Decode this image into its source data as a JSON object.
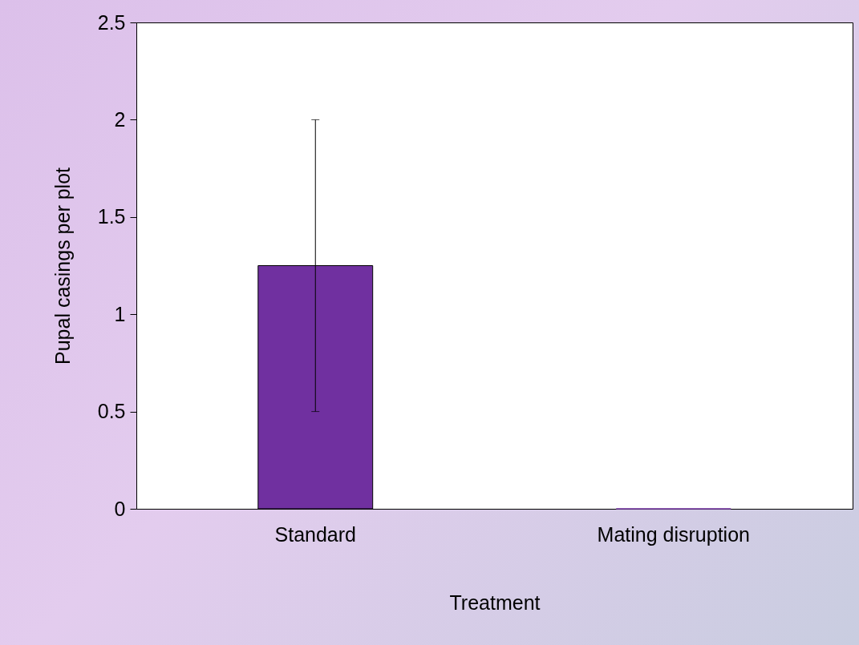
{
  "chart_data": {
    "type": "bar",
    "xlabel": "Treatment",
    "ylabel": "Pupal casings per plot",
    "categories": [
      "Standard",
      "Mating disruption"
    ],
    "values": [
      1.25,
      0
    ],
    "errors": [
      [
        0.5,
        2
      ],
      null
    ],
    "color": "#7030a0",
    "ylim": [
      0,
      2.5
    ],
    "yticks": [
      0,
      0.5,
      1,
      1.5,
      2,
      2.5
    ],
    "grid": false
  }
}
